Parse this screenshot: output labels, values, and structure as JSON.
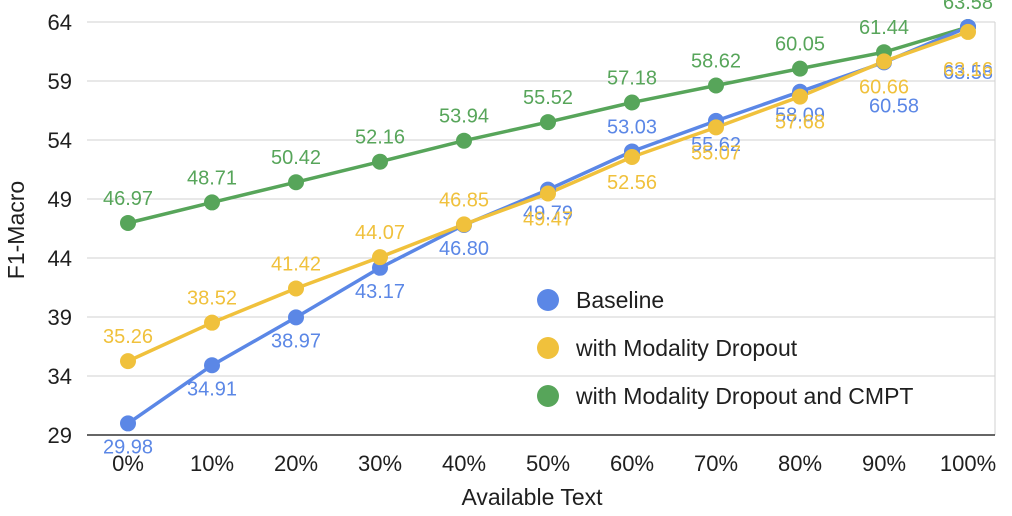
{
  "chart_data": {
    "type": "line",
    "title": "",
    "xlabel": "Available Text",
    "ylabel": "F1-Macro",
    "categories": [
      "0%",
      "10%",
      "20%",
      "30%",
      "40%",
      "50%",
      "60%",
      "70%",
      "80%",
      "90%",
      "100%"
    ],
    "yticks": [
      29,
      34,
      39,
      44,
      49,
      54,
      59,
      64
    ],
    "ylim": [
      29,
      64
    ],
    "grid": true,
    "legend_position": "center-right",
    "series": [
      {
        "name": "with Modality Dropout and CMPT",
        "color": "#57a55a",
        "values": [
          46.97,
          48.71,
          50.42,
          52.16,
          53.94,
          55.52,
          57.18,
          58.62,
          60.05,
          61.44,
          63.58
        ],
        "labels": [
          "46.97",
          "48.71",
          "50.42",
          "52.16",
          "53.94",
          "55.52",
          "57.18",
          "58.62",
          "60.05",
          "61.44",
          "63.58"
        ]
      },
      {
        "name": "Baseline",
        "color": "#5b87e6",
        "values": [
          29.98,
          34.91,
          38.97,
          43.17,
          46.8,
          49.79,
          53.03,
          55.62,
          58.09,
          60.58,
          63.58
        ],
        "labels": [
          "29.98",
          "34.91",
          "38.97",
          "43.17",
          "46.80",
          "49.79",
          "53.03",
          "55.62",
          "58.09",
          "60.58",
          "63.58"
        ]
      },
      {
        "name": "with Modality Dropout",
        "color": "#f0c13c",
        "values": [
          35.26,
          38.52,
          41.42,
          44.07,
          46.85,
          49.47,
          52.56,
          55.07,
          57.68,
          60.66,
          63.16
        ],
        "labels": [
          "35.26",
          "38.52",
          "41.42",
          "44.07",
          "46.85",
          "49.47",
          "52.56",
          "55.07",
          "57.68",
          "60.66",
          "63.16"
        ]
      }
    ],
    "legend": [
      {
        "name": "Baseline",
        "color": "#5b87e6"
      },
      {
        "name": "with Modality Dropout",
        "color": "#f0c13c"
      },
      {
        "name": "with Modality Dropout and CMPT",
        "color": "#57a55a"
      }
    ]
  }
}
